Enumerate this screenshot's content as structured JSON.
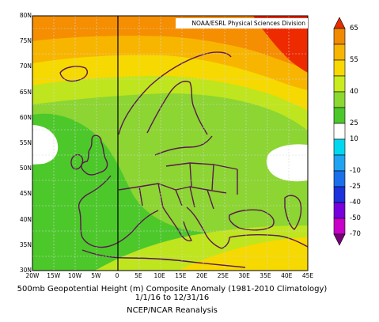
{
  "credit": "NOAA/ESRL Physical Sciences Division",
  "caption": {
    "line1": "500mb Geopotential Height (m) Composite Anomaly (1981-2010 Climatology)",
    "line2": "1/1/16 to 12/31/16",
    "line3": "NCEP/NCAR Reanalysis"
  },
  "lat_labels": [
    "80N",
    "75N",
    "70N",
    "65N",
    "60N",
    "55N",
    "50N",
    "45N",
    "40N",
    "35N",
    "30N"
  ],
  "lon_labels": [
    "20W",
    "15W",
    "10W",
    "5W",
    "0",
    "5E",
    "10E",
    "15E",
    "20E",
    "25E",
    "30E",
    "35E",
    "40E",
    "45E"
  ],
  "colorbar": {
    "labels": [
      "65",
      "55",
      "40",
      "25",
      "10",
      "-10",
      "-25",
      "-40",
      "-50",
      "-70"
    ],
    "colors": [
      "#e62e00",
      "#f08a00",
      "#f7b500",
      "#f7d800",
      "#c8ec1e",
      "#8ad830",
      "#4cc82a",
      "#ffffff",
      "#00d8f0",
      "#1ea4f0",
      "#1b6fea",
      "#1b32dc",
      "#7800dc",
      "#c800c8",
      "#780078"
    ]
  },
  "map": {
    "variable": "500mb Geopotential Height anomaly",
    "units": "m",
    "period": "1/1/16 to 12/31/16",
    "climatology": "1981-2010",
    "lat_range": [
      30,
      80
    ],
    "lon_range": [
      -20,
      45
    ],
    "fill_colors": {
      "max_high": "#ee2a00",
      "high": "#f58e00",
      "mid_high": "#f8b500",
      "mid": "#f6d900",
      "low_positive": "#bfe51e",
      "small_positive": "#8cd532",
      "near_zero": "#4cc82a",
      "neutral": "#ffffff",
      "coast_line": "#5a1950"
    }
  }
}
